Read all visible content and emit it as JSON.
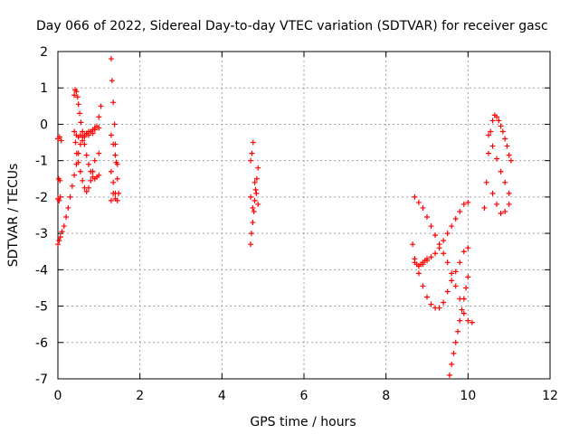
{
  "chart_data": {
    "type": "scatter",
    "title": "Day 066 of 2022, Sidereal Day-to-day VTEC variation (SDTVAR) for receiver gasc",
    "xlabel": "GPS time / hours",
    "ylabel": "SDTVAR / TECUs",
    "xlim": [
      0,
      12
    ],
    "ylim": [
      -7,
      2
    ],
    "xticks": [
      0,
      2,
      4,
      6,
      8,
      10,
      12
    ],
    "yticks": [
      -7,
      -6,
      -5,
      -4,
      -3,
      -2,
      -1,
      0,
      1,
      2
    ],
    "grid": true,
    "legend": "none",
    "marker": "+",
    "series": [
      {
        "name": "SDTVAR",
        "color": "#ff0000",
        "x": [
          0.0,
          0.04,
          0.08,
          0.02,
          0.05,
          0.0,
          0.03,
          0.06,
          0.0,
          0.03,
          0.06,
          0.1,
          0.15,
          0.2,
          0.25,
          0.3,
          0.35,
          0.4,
          0.45,
          0.5,
          0.55,
          0.6,
          0.65,
          0.7,
          0.75,
          0.8,
          0.85,
          0.9,
          0.95,
          1.0,
          1.05,
          0.4,
          0.42,
          0.45,
          0.48,
          0.5,
          0.53,
          0.56,
          0.6,
          0.65,
          0.7,
          0.75,
          0.8,
          0.85,
          0.9,
          0.95,
          1.0,
          0.4,
          0.43,
          0.46,
          0.5,
          0.55,
          0.6,
          0.65,
          0.7,
          0.75,
          0.8,
          0.85,
          0.9,
          1.0,
          0.45,
          0.5,
          0.55,
          0.6,
          0.65,
          0.7,
          0.75,
          0.8,
          0.85,
          0.9,
          1.0,
          1.3,
          1.32,
          1.35,
          1.38,
          1.4,
          1.42,
          1.45,
          1.48,
          1.3,
          1.35,
          1.4,
          1.45,
          1.3,
          1.35,
          1.4,
          1.45,
          1.3,
          1.35,
          1.4,
          4.7,
          4.72,
          4.75,
          4.78,
          4.8,
          4.82,
          4.85,
          4.88,
          4.7,
          4.73,
          4.76,
          4.8,
          4.84,
          4.88,
          4.7,
          4.75,
          8.65,
          8.7,
          8.75,
          8.8,
          8.85,
          8.9,
          8.95,
          9.0,
          8.7,
          8.8,
          8.9,
          9.0,
          9.1,
          9.2,
          9.3,
          9.4,
          9.5,
          9.6,
          9.7,
          9.8,
          9.9,
          10.0,
          10.1,
          8.7,
          8.8,
          8.9,
          9.0,
          9.1,
          9.2,
          9.3,
          9.4,
          9.5,
          9.6,
          9.7,
          9.8,
          9.9,
          10.0,
          8.8,
          8.9,
          9.0,
          9.1,
          9.2,
          9.3,
          9.4,
          9.5,
          9.6,
          9.7,
          9.8,
          9.9,
          10.0,
          9.55,
          9.6,
          9.65,
          9.7,
          9.75,
          9.8,
          9.85,
          9.9,
          9.95,
          10.0,
          10.4,
          10.45,
          10.5,
          10.55,
          10.6,
          10.65,
          10.7,
          10.75,
          10.8,
          10.85,
          10.9,
          10.95,
          11.0,
          11.05,
          10.5,
          10.6,
          10.7,
          10.8,
          10.9,
          11.0,
          10.6,
          10.7,
          10.8,
          10.9,
          11.0
        ],
        "y": [
          -0.4,
          -0.35,
          -0.45,
          -1.5,
          -1.55,
          -2.05,
          -2.1,
          -2.0,
          -3.3,
          -3.2,
          -3.1,
          -2.95,
          -2.8,
          -2.55,
          -2.3,
          -2.0,
          -1.7,
          -1.4,
          -1.1,
          -0.8,
          -0.55,
          -0.35,
          -0.3,
          -0.25,
          -0.2,
          -0.2,
          -0.15,
          -0.1,
          -0.05,
          0.2,
          0.5,
          0.8,
          0.95,
          0.9,
          0.75,
          0.55,
          0.3,
          0.05,
          -0.2,
          -0.55,
          -0.85,
          -1.1,
          -1.3,
          -1.45,
          -1.5,
          -1.45,
          -1.4,
          -0.2,
          -0.5,
          -0.8,
          -1.05,
          -1.3,
          -1.55,
          -1.75,
          -1.85,
          -1.75,
          -1.55,
          -1.3,
          -1.0,
          -0.8,
          -0.3,
          -0.35,
          -0.3,
          -0.45,
          -0.35,
          -0.25,
          -0.3,
          -0.2,
          -0.25,
          -0.15,
          -0.1,
          1.8,
          1.2,
          0.6,
          0.0,
          -0.55,
          -1.05,
          -1.5,
          -1.9,
          -0.3,
          -0.55,
          -0.85,
          -1.1,
          -1.3,
          -1.6,
          -1.9,
          -2.1,
          -2.1,
          -1.9,
          -2.05,
          -3.3,
          -3.0,
          -2.7,
          -2.4,
          -2.1,
          -1.8,
          -1.5,
          -1.2,
          -1.0,
          -0.8,
          -0.5,
          -1.6,
          -1.9,
          -2.2,
          -2.0,
          -2.3,
          -3.3,
          -3.7,
          -3.85,
          -3.9,
          -3.85,
          -3.8,
          -3.75,
          -3.7,
          -2.0,
          -2.15,
          -2.3,
          -2.55,
          -2.8,
          -3.05,
          -3.3,
          -3.55,
          -3.8,
          -4.1,
          -4.45,
          -4.8,
          -5.2,
          -5.4,
          -5.45,
          -3.8,
          -4.1,
          -4.45,
          -4.75,
          -4.95,
          -5.05,
          -5.05,
          -4.9,
          -4.6,
          -4.3,
          -4.05,
          -3.8,
          -3.5,
          -3.4,
          -3.9,
          -3.85,
          -3.75,
          -3.65,
          -3.55,
          -3.4,
          -3.2,
          -3.0,
          -2.8,
          -2.6,
          -2.4,
          -2.2,
          -2.15,
          -6.9,
          -6.6,
          -6.3,
          -6.0,
          -5.7,
          -5.4,
          -5.1,
          -4.8,
          -4.5,
          -4.2,
          -2.3,
          -1.6,
          -0.8,
          -0.2,
          0.1,
          0.25,
          0.2,
          0.1,
          -0.05,
          -0.2,
          -0.4,
          -0.6,
          -0.85,
          -1.0,
          -0.3,
          -0.6,
          -0.95,
          -1.3,
          -1.6,
          -1.9,
          -1.9,
          -2.2,
          -2.45,
          -2.4,
          -2.2
        ]
      }
    ]
  }
}
